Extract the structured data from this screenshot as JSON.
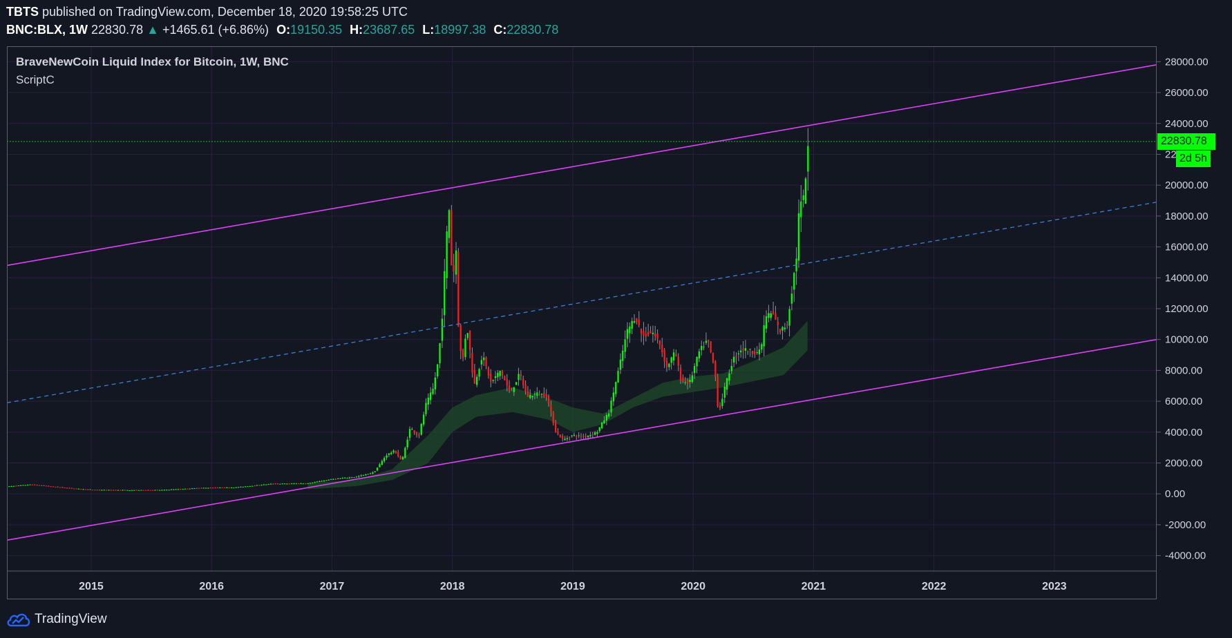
{
  "header": {
    "author": "TBTS",
    "published_text": "published on TradingView.com, December 18, 2020 19:58:25 UTC",
    "symbol": "BNC:BLX, 1W",
    "last_price": "22830.78",
    "change": "+1465.61 (+6.86%)",
    "open_label": "O:",
    "open": "19150.35",
    "high_label": "H:",
    "high": "23687.65",
    "low_label": "L:",
    "low": "18997.38",
    "close_label": "C:",
    "close": "22830.78"
  },
  "legend": {
    "title": "BraveNewCoin Liquid Index for Bitcoin, 1W, BNC",
    "script": "ScriptC"
  },
  "badges": {
    "price": "22830.78",
    "countdown": "2d 5h"
  },
  "footer": {
    "brand": "TradingView"
  },
  "colors": {
    "background": "#131722",
    "grid": "#2a1f3d",
    "channel": "#e040fb",
    "midline": "#3d7fd6",
    "up": "#00ff00",
    "down": "#ff1a1a",
    "band": "#1f4a2a",
    "price_line": "#00ff00"
  },
  "chart_data": {
    "type": "candlestick",
    "x_ticks": [
      "2015",
      "2016",
      "2017",
      "2018",
      "2019",
      "2020",
      "2021",
      "2022",
      "2023"
    ],
    "x_tick_years": [
      2015,
      2016,
      2017,
      2018,
      2019,
      2020,
      2021,
      2022,
      2023
    ],
    "xlim": [
      2014.3,
      2023.85
    ],
    "ylim": [
      -5000,
      29000
    ],
    "y_ticks": [
      "28000.00",
      "26000.00",
      "24000.00",
      "22000.00",
      "20000.00",
      "18000.00",
      "16000.00",
      "14000.00",
      "12000.00",
      "10000.00",
      "8000.00",
      "6000.00",
      "4000.00",
      "2000.00",
      "0.00",
      "-2000.00",
      "-4000.00"
    ],
    "y_tick_values": [
      28000,
      26000,
      24000,
      22000,
      20000,
      18000,
      16000,
      14000,
      12000,
      10000,
      8000,
      6000,
      4000,
      2000,
      0,
      -2000,
      -4000
    ],
    "last_price": 22830.78,
    "channel": {
      "upper": [
        [
          2014.3,
          14800
        ],
        [
          2023.85,
          27800
        ]
      ],
      "lower": [
        [
          2014.3,
          -3000
        ],
        [
          2023.85,
          10000
        ]
      ],
      "middle": [
        [
          2014.3,
          5900
        ],
        [
          2023.85,
          18900
        ]
      ]
    },
    "price_path": [
      [
        2014.3,
        480
      ],
      [
        2014.5,
        600
      ],
      [
        2014.8,
        380
      ],
      [
        2015.0,
        260
      ],
      [
        2015.3,
        240
      ],
      [
        2015.6,
        250
      ],
      [
        2015.9,
        380
      ],
      [
        2016.2,
        420
      ],
      [
        2016.5,
        650
      ],
      [
        2016.8,
        680
      ],
      [
        2017.0,
        950
      ],
      [
        2017.2,
        1100
      ],
      [
        2017.35,
        1400
      ],
      [
        2017.45,
        2500
      ],
      [
        2017.52,
        2800
      ],
      [
        2017.58,
        2100
      ],
      [
        2017.65,
        4300
      ],
      [
        2017.72,
        3700
      ],
      [
        2017.78,
        5800
      ],
      [
        2017.84,
        6800
      ],
      [
        2017.88,
        8500
      ],
      [
        2017.91,
        10800
      ],
      [
        2017.94,
        15000
      ],
      [
        2017.97,
        19000
      ],
      [
        2018.0,
        13500
      ],
      [
        2018.03,
        16000
      ],
      [
        2018.05,
        11000
      ],
      [
        2018.08,
        8200
      ],
      [
        2018.12,
        11000
      ],
      [
        2018.18,
        7000
      ],
      [
        2018.25,
        9000
      ],
      [
        2018.32,
        7200
      ],
      [
        2018.4,
        8000
      ],
      [
        2018.48,
        6500
      ],
      [
        2018.56,
        7800
      ],
      [
        2018.62,
        6300
      ],
      [
        2018.7,
        6500
      ],
      [
        2018.78,
        6400
      ],
      [
        2018.86,
        4000
      ],
      [
        2018.92,
        3500
      ],
      [
        2019.0,
        3800
      ],
      [
        2019.1,
        3700
      ],
      [
        2019.2,
        4000
      ],
      [
        2019.3,
        5300
      ],
      [
        2019.38,
        8000
      ],
      [
        2019.45,
        10500
      ],
      [
        2019.52,
        11500
      ],
      [
        2019.58,
        10200
      ],
      [
        2019.66,
        10500
      ],
      [
        2019.72,
        9800
      ],
      [
        2019.78,
        8200
      ],
      [
        2019.85,
        9200
      ],
      [
        2019.9,
        7300
      ],
      [
        2019.97,
        7200
      ],
      [
        2020.05,
        9200
      ],
      [
        2020.12,
        10000
      ],
      [
        2020.18,
        8000
      ],
      [
        2020.21,
        5200
      ],
      [
        2020.26,
        6800
      ],
      [
        2020.33,
        8700
      ],
      [
        2020.4,
        9400
      ],
      [
        2020.5,
        9200
      ],
      [
        2020.56,
        9200
      ],
      [
        2020.6,
        11500
      ],
      [
        2020.66,
        11700
      ],
      [
        2020.72,
        10500
      ],
      [
        2020.78,
        11000
      ],
      [
        2020.82,
        13200
      ],
      [
        2020.86,
        15500
      ],
      [
        2020.88,
        18500
      ],
      [
        2020.92,
        19150
      ],
      [
        2020.96,
        22830
      ]
    ],
    "band": {
      "upper": [
        [
          2016.8,
          700
        ],
        [
          2017.2,
          900
        ],
        [
          2017.5,
          1600
        ],
        [
          2017.8,
          3800
        ],
        [
          2018.0,
          5600
        ],
        [
          2018.2,
          6400
        ],
        [
          2018.5,
          6900
        ],
        [
          2018.8,
          6200
        ],
        [
          2019.0,
          5600
        ],
        [
          2019.25,
          5200
        ],
        [
          2019.5,
          6200
        ],
        [
          2019.75,
          7200
        ],
        [
          2020.0,
          7600
        ],
        [
          2020.25,
          7800
        ],
        [
          2020.5,
          8600
        ],
        [
          2020.75,
          9500
        ],
        [
          2020.95,
          11200
        ]
      ],
      "lower": [
        [
          2016.8,
          300
        ],
        [
          2017.2,
          500
        ],
        [
          2017.5,
          900
        ],
        [
          2017.8,
          2000
        ],
        [
          2018.0,
          4000
        ],
        [
          2018.2,
          5000
        ],
        [
          2018.5,
          5300
        ],
        [
          2018.8,
          4800
        ],
        [
          2019.0,
          4000
        ],
        [
          2019.25,
          4500
        ],
        [
          2019.5,
          5600
        ],
        [
          2019.75,
          6300
        ],
        [
          2020.0,
          6600
        ],
        [
          2020.25,
          6900
        ],
        [
          2020.5,
          7300
        ],
        [
          2020.75,
          7700
        ],
        [
          2020.95,
          9300
        ]
      ]
    }
  }
}
